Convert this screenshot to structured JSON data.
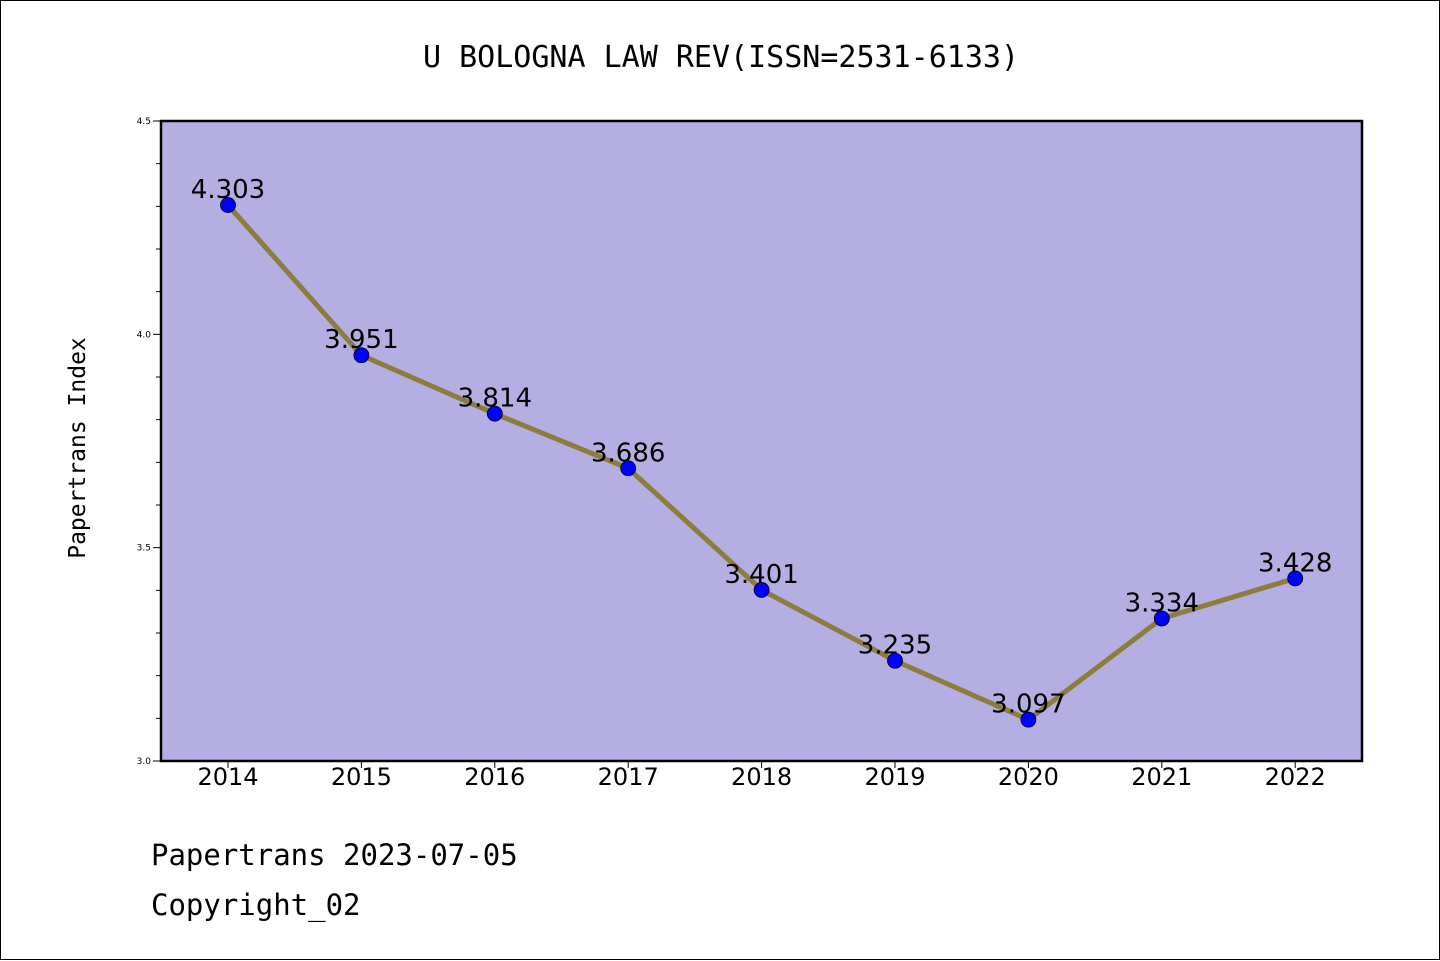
{
  "chart_data": {
    "type": "line",
    "title": "U BOLOGNA LAW REV(ISSN=2531-6133)",
    "xlabel": "",
    "ylabel": "Papertrans Index",
    "categories": [
      "2014",
      "2015",
      "2016",
      "2017",
      "2018",
      "2019",
      "2020",
      "2021",
      "2022"
    ],
    "series": [
      {
        "values": [
          4.303,
          3.951,
          3.814,
          3.686,
          3.401,
          3.235,
          3.097,
          3.334,
          3.428
        ],
        "labels": [
          "4.303",
          "3.951",
          "3.814",
          "3.686",
          "3.401",
          "3.235",
          "3.097",
          "3.334",
          "3.428"
        ]
      }
    ],
    "ylim": [
      3.0,
      4.5
    ],
    "yticks": [
      "3.0",
      "3.5",
      "4.0",
      "4.5"
    ],
    "grid": false,
    "legend": "none",
    "colors": {
      "plot_background": "#b5aee2",
      "line": "#8c7d3c",
      "marker": "#0000ff"
    }
  },
  "footer": {
    "line1": "Papertrans 2023-07-05",
    "line2": "Copyright_02"
  }
}
